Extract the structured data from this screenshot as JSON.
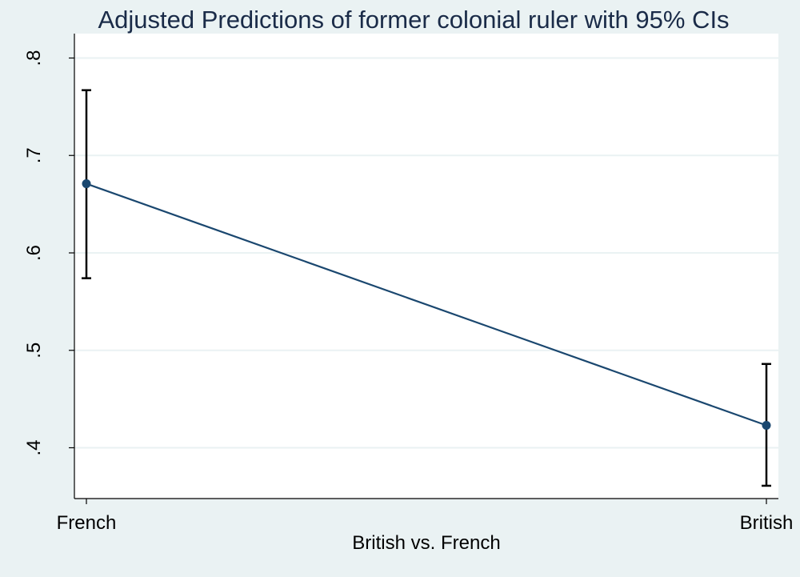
{
  "colors": {
    "background": "#eaf2f3",
    "plot_background": "#ffffff",
    "gridline": "#eaf2f3",
    "series": "#1a476f",
    "ci": "#000000",
    "title": "#1a2b48"
  },
  "chart_data": {
    "type": "line",
    "title": "Adjusted Predictions of former colonial ruler with 95% CIs",
    "xlabel": "British vs. French",
    "ylabel": "",
    "categories": [
      "French",
      "British"
    ],
    "series": [
      {
        "values": [
          0.671,
          0.423
        ],
        "ci_lower": [
          0.574,
          0.361
        ],
        "ci_upper": [
          0.767,
          0.486
        ]
      }
    ],
    "ylim": [
      0.35,
      0.8
    ],
    "yticks": [
      0.4,
      0.5,
      0.6,
      0.7,
      0.8
    ],
    "ytick_labels": [
      ".4",
      ".5",
      ".6",
      ".7",
      ".8"
    ],
    "grid": true,
    "legend": "none"
  }
}
